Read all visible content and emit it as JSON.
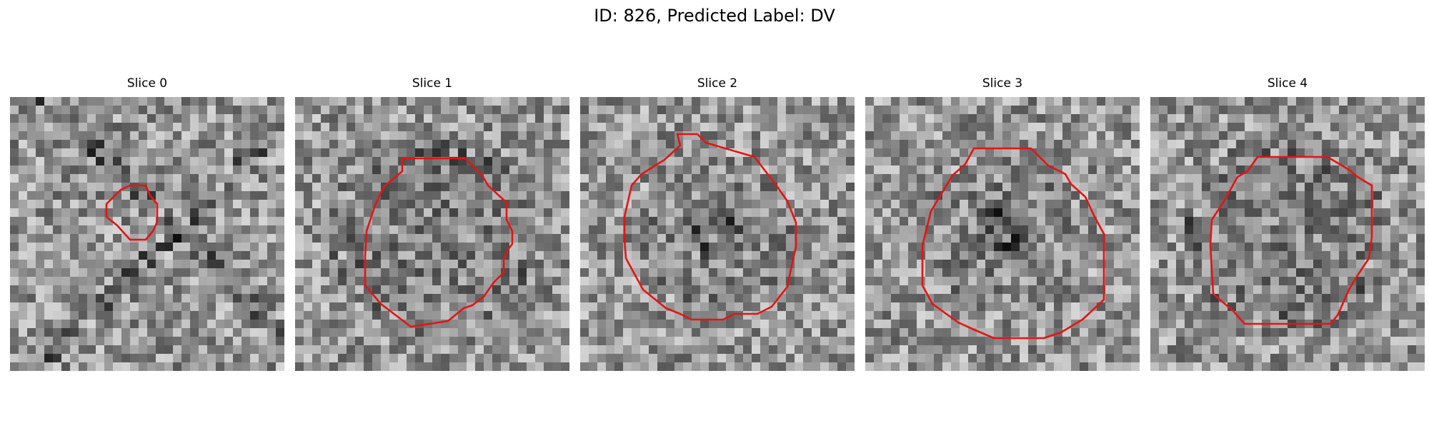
{
  "figure": {
    "title": "ID: 826, Predicted Label: DV"
  },
  "slices": [
    {
      "label": "Slice 0",
      "seed": 11,
      "blob": "none",
      "dark_lines": true
    },
    {
      "label": "Slice 1",
      "seed": 23,
      "blob": "ring",
      "dark_lines": false
    },
    {
      "label": "Slice 2",
      "seed": 37,
      "blob": "core",
      "dark_lines": false
    },
    {
      "label": "Slice 3",
      "seed": 41,
      "blob": "core",
      "dark_lines": false
    },
    {
      "label": "Slice 4",
      "seed": 53,
      "blob": "ring",
      "dark_lines": false
    }
  ],
  "colors": {
    "contour": "#e41414",
    "background": "#ffffff"
  },
  "image_grid": {
    "cells_per_side": 32,
    "colormap": "gray"
  }
}
